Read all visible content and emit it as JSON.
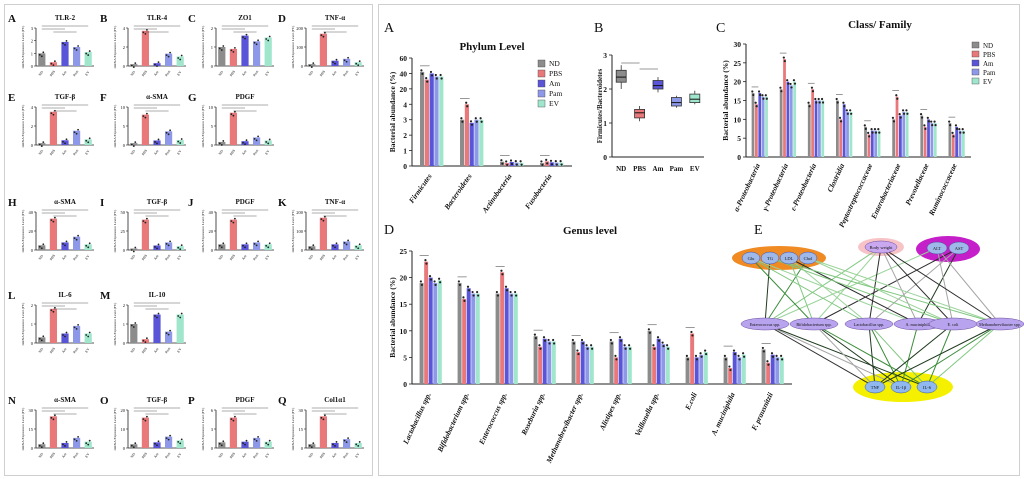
{
  "colors": {
    "ND": "#8c8c8c",
    "PBS": "#e8787a",
    "Am": "#5a55d8",
    "Pam": "#8e98e8",
    "EV": "#9fe6cc"
  },
  "groups": [
    "ND",
    "PBS",
    "Am",
    "Pam",
    "EV"
  ],
  "small_ylabel": "mRNA Expression Level (FC)",
  "small_panels": [
    {
      "letter": "A",
      "title": "TLR-2",
      "ymax": 3,
      "ticks": [
        "0",
        "1",
        "2",
        "3"
      ],
      "values": [
        1.0,
        0.3,
        1.9,
        1.5,
        1.1
      ]
    },
    {
      "letter": "B",
      "title": "TLR-4",
      "ymax": 4,
      "ticks": [
        "0",
        "2",
        "4"
      ],
      "values": [
        0.2,
        3.7,
        0.3,
        1.3,
        1.0
      ]
    },
    {
      "letter": "C",
      "title": "ZO1",
      "ymax": 2,
      "ticks": [
        "0",
        "1",
        "2"
      ],
      "values": [
        1.0,
        0.9,
        1.6,
        1.3,
        1.5
      ]
    },
    {
      "letter": "D",
      "title": "TNF-α",
      "ymax": 200,
      "ticks": [
        "0",
        "100",
        "200"
      ],
      "values": [
        10,
        170,
        28,
        38,
        20
      ]
    },
    {
      "letter": "E",
      "title": "TGF-β",
      "ymax": 4,
      "ticks": [
        "0",
        "2",
        "4"
      ],
      "values": [
        0.2,
        3.5,
        0.5,
        1.5,
        0.6
      ]
    },
    {
      "letter": "F",
      "title": "α-SMA",
      "ymax": 10,
      "ticks": [
        "0",
        "5",
        "10"
      ],
      "values": [
        0.5,
        8.0,
        1.2,
        3.6,
        1.3
      ]
    },
    {
      "letter": "G",
      "title": "PDGF",
      "ymax": 10,
      "ticks": [
        "0",
        "5",
        "10"
      ],
      "values": [
        0.8,
        8.5,
        1.0,
        2.0,
        1.2
      ]
    },
    {
      "letter": "H",
      "title": "α-SMA",
      "ymax": 40,
      "ticks": [
        "0",
        "20",
        "40"
      ],
      "values": [
        5,
        33,
        8,
        14,
        6
      ]
    },
    {
      "letter": "I",
      "title": "TGF-β",
      "ymax": 50,
      "ticks": [
        "0",
        "25",
        "50"
      ],
      "values": [
        2,
        40,
        6,
        10,
        5
      ]
    },
    {
      "letter": "J",
      "title": "PDGF",
      "ymax": 40,
      "ticks": [
        "0",
        "20",
        "40"
      ],
      "values": [
        6,
        32,
        6,
        8,
        6
      ]
    },
    {
      "letter": "K",
      "title": "TNF-α",
      "ymax": 200,
      "ticks": [
        "0",
        "100",
        "200"
      ],
      "values": [
        20,
        170,
        30,
        45,
        25
      ]
    },
    {
      "letter": "L",
      "title": "IL-6",
      "ymax": 2,
      "ticks": [
        "0",
        "1",
        "2"
      ],
      "values": [
        0.3,
        1.8,
        0.5,
        0.9,
        0.5
      ]
    },
    {
      "letter": "M",
      "title": "IL-10",
      "ymax": 2,
      "ticks": [
        "0",
        "1",
        "2"
      ],
      "values": [
        1.0,
        0.2,
        1.5,
        0.6,
        1.5
      ]
    },
    {
      "letter": "N",
      "title": "α-SMA",
      "ymax": 30,
      "ticks": [
        "0",
        "15",
        "30"
      ],
      "values": [
        3,
        25,
        4,
        8,
        5
      ]
    },
    {
      "letter": "O",
      "title": "TGF-β",
      "ymax": 20,
      "ticks": [
        "0",
        "10",
        "20"
      ],
      "values": [
        2,
        16,
        3,
        6,
        4
      ]
    },
    {
      "letter": "P",
      "title": "PDGF",
      "ymax": 6,
      "ticks": [
        "0",
        "3",
        "6"
      ],
      "values": [
        0.9,
        4.8,
        1.0,
        1.6,
        1.0
      ]
    },
    {
      "letter": "Q",
      "title": "Col1α1",
      "ymax": 30,
      "ticks": [
        "0",
        "15",
        "30"
      ],
      "values": [
        3,
        25,
        4,
        7,
        4
      ]
    }
  ],
  "chart_data": [
    {
      "type": "bar",
      "panel": "A",
      "title": "Phylum Level",
      "ylabel": "Bacterial abundance (%)",
      "categories": [
        "Firmicutes",
        "Bacteroidetes",
        "Actinobacteria",
        "Fusobacteria"
      ],
      "ylim": [
        0,
        70
      ],
      "yticks": [
        "0",
        "1",
        "2",
        "3",
        "4",
        "20",
        "40",
        "60"
      ],
      "series": [
        {
          "name": "ND",
          "values": [
            61,
            30,
            2.8,
            2.0
          ]
        },
        {
          "name": "PBS",
          "values": [
            56,
            40,
            2.0,
            3.0
          ]
        },
        {
          "name": "Am",
          "values": [
            60,
            28,
            2.6,
            2.4
          ]
        },
        {
          "name": "Pam",
          "values": [
            58,
            30,
            2.2,
            2.2
          ]
        },
        {
          "name": "EV",
          "values": [
            58,
            30,
            2.1,
            2.2
          ]
        }
      ]
    },
    {
      "type": "box",
      "panel": "B",
      "ylabel": "Firmicutes/Bacteroidetes",
      "categories": [
        "ND",
        "PBS",
        "Am",
        "Pam",
        "EV"
      ],
      "ylim": [
        0,
        3
      ],
      "yticks": [
        "0",
        "1",
        "2",
        "3"
      ],
      "boxes": [
        {
          "min": 2.0,
          "q1": 2.2,
          "median": 2.35,
          "q3": 2.55,
          "max": 2.7
        },
        {
          "min": 1.05,
          "q1": 1.15,
          "median": 1.3,
          "q3": 1.4,
          "max": 1.5
        },
        {
          "min": 1.9,
          "q1": 2.0,
          "median": 2.1,
          "q3": 2.25,
          "max": 2.35
        },
        {
          "min": 1.45,
          "q1": 1.5,
          "median": 1.6,
          "q3": 1.75,
          "max": 1.8
        },
        {
          "min": 1.55,
          "q1": 1.6,
          "median": 1.7,
          "q3": 1.85,
          "max": 1.95
        }
      ]
    },
    {
      "type": "bar",
      "panel": "C",
      "title": "Class/ Family",
      "ylabel": "Bacterial abundance (%)",
      "categories": [
        "α-Proteobacteria",
        "γ-Proteobacteria",
        "ε-Proteobacteria",
        "Clostridia",
        "Peptostreptococcaceae",
        "Enterobacteriaceae",
        "Prevotellaceae",
        "Ruminococcaceae"
      ],
      "ylim": [
        0,
        30
      ],
      "yticks": [
        "0",
        "5",
        "10",
        "15",
        "20",
        "25",
        "30"
      ],
      "series": [
        {
          "name": "ND",
          "values": [
            17,
            18,
            14,
            15,
            8,
            10,
            11,
            9
          ]
        },
        {
          "name": "PBS",
          "values": [
            14,
            26,
            18,
            10,
            6,
            16,
            8,
            6
          ]
        },
        {
          "name": "Am",
          "values": [
            17,
            20,
            15,
            14,
            7,
            11,
            10,
            8
          ]
        },
        {
          "name": "Pam",
          "values": [
            16,
            19,
            15,
            12,
            7,
            12,
            9,
            7
          ]
        },
        {
          "name": "EV",
          "values": [
            16,
            20,
            15,
            12,
            7,
            12,
            9,
            7
          ]
        }
      ]
    },
    {
      "type": "bar",
      "panel": "D",
      "title": "Genus level",
      "ylabel": "Bacterial abundance (%)",
      "categories": [
        "Lactobacillus spp.",
        "Bifidobacterium spp.",
        "Enterococcus spp.",
        "Roseburia spp.",
        "Methanobrevibacter spp.",
        "Alistipes spp.",
        "Veillonella spp.",
        "E.coli",
        "A. muciniphila",
        "F. prausnitzii"
      ],
      "ylim": [
        0,
        25
      ],
      "yticks": [
        "0",
        "5",
        "10",
        "15",
        "20",
        "25"
      ],
      "series": [
        {
          "name": "ND",
          "values": [
            19,
            19,
            17,
            9,
            8,
            8,
            10,
            5,
            5,
            6.5
          ]
        },
        {
          "name": "PBS",
          "values": [
            23,
            16,
            21,
            7,
            6,
            5,
            7,
            9.5,
            3,
            4
          ]
        },
        {
          "name": "Am",
          "values": [
            20,
            18,
            18,
            8.5,
            8,
            8.5,
            8.5,
            5,
            6,
            5.5
          ]
        },
        {
          "name": "Pam",
          "values": [
            19,
            17,
            17,
            8,
            7,
            7,
            7.5,
            5.5,
            5,
            5
          ]
        },
        {
          "name": "EV",
          "values": [
            19.5,
            17,
            17,
            8,
            7,
            7,
            7,
            6,
            5.5,
            5
          ]
        }
      ]
    }
  ],
  "network": {
    "letter": "E",
    "top_left": [
      "Glu",
      "TG",
      "LDL",
      "Chol"
    ],
    "top_mid": [
      "Body weight"
    ],
    "top_right": [
      "ALT",
      "AST"
    ],
    "middle": [
      "Enterococcus spp.",
      "Bifidobacterium spp.",
      "Lactobacillus spp.",
      "A. muciniphila",
      "E. coli",
      "Methanobrevibacter spp."
    ],
    "bottom": [
      "TNF",
      "IL-1β",
      "IL-6"
    ]
  }
}
